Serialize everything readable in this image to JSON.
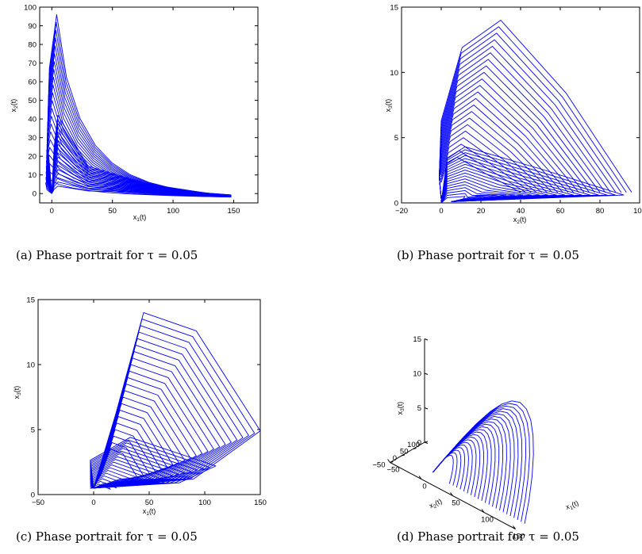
{
  "chart_data": [
    {
      "type": "line",
      "panel": "a",
      "caption": "(a)  Phase portrait for τ = 0.05",
      "xlabel": "x₁(t)",
      "ylabel": "x₂(t)",
      "xlim": [
        -10,
        170
      ],
      "ylim": [
        -5,
        100
      ],
      "xticks": [
        0,
        50,
        100,
        150
      ],
      "yticks": [
        0,
        10,
        20,
        30,
        40,
        50,
        60,
        70,
        80,
        90,
        100
      ],
      "grid": false,
      "series": [
        {
          "x": [
            0,
            -3,
            -2,
            3,
            15,
            40,
            80,
            120,
            148
          ],
          "y": [
            0,
            20,
            85,
            96,
            80,
            45,
            18,
            5,
            -2
          ]
        }
      ]
    },
    {
      "type": "line",
      "panel": "b",
      "caption": "(b)  Phase portrait for τ = 0.05",
      "xlabel": "x₂(t)",
      "ylabel": "x₃(t)",
      "xlim": [
        -20,
        100
      ],
      "ylim": [
        0,
        15
      ],
      "xticks": [
        -20,
        0,
        20,
        40,
        60,
        80,
        100
      ],
      "yticks": [
        0,
        5,
        10,
        15
      ],
      "grid": false,
      "series": [
        {
          "x": [
            0,
            3,
            15,
            30,
            50,
            75,
            96
          ],
          "y": [
            0,
            8,
            13,
            14,
            10,
            4,
            0.5
          ]
        }
      ]
    },
    {
      "type": "line",
      "panel": "c",
      "caption": "(c)  Phase portrait for τ = 0.05",
      "xlabel": "x₁(t)",
      "ylabel": "x₃(t)",
      "xlim": [
        -50,
        150
      ],
      "ylim": [
        0,
        15
      ],
      "xticks": [
        -50,
        0,
        50,
        100,
        150
      ],
      "yticks": [
        0,
        5,
        10,
        15
      ],
      "grid": false,
      "series": [
        {
          "x": [
            0,
            20,
            42,
            60,
            90,
            120,
            150
          ],
          "y": [
            0.5,
            6,
            14,
            13.5,
            11,
            7,
            3
          ]
        }
      ]
    },
    {
      "type": "line",
      "panel": "d",
      "caption": "(d)  Phase portrait for τ = 0.05",
      "xlabel": "x₁(t)",
      "ylabel": "x₂(t)",
      "zlabel": "x₃(t)",
      "xticks": [
        -50,
        0,
        50,
        100,
        150
      ],
      "yticks": [
        -50,
        0,
        50,
        100
      ],
      "zticks": [
        0,
        5,
        10,
        15
      ],
      "zlim": [
        0,
        15
      ],
      "grid": false,
      "series": [
        {
          "x": [
            0,
            20,
            50,
            100,
            150
          ],
          "y": [
            0,
            40,
            80,
            60,
            10
          ],
          "z": [
            0,
            8,
            14,
            10,
            2
          ]
        }
      ]
    }
  ]
}
